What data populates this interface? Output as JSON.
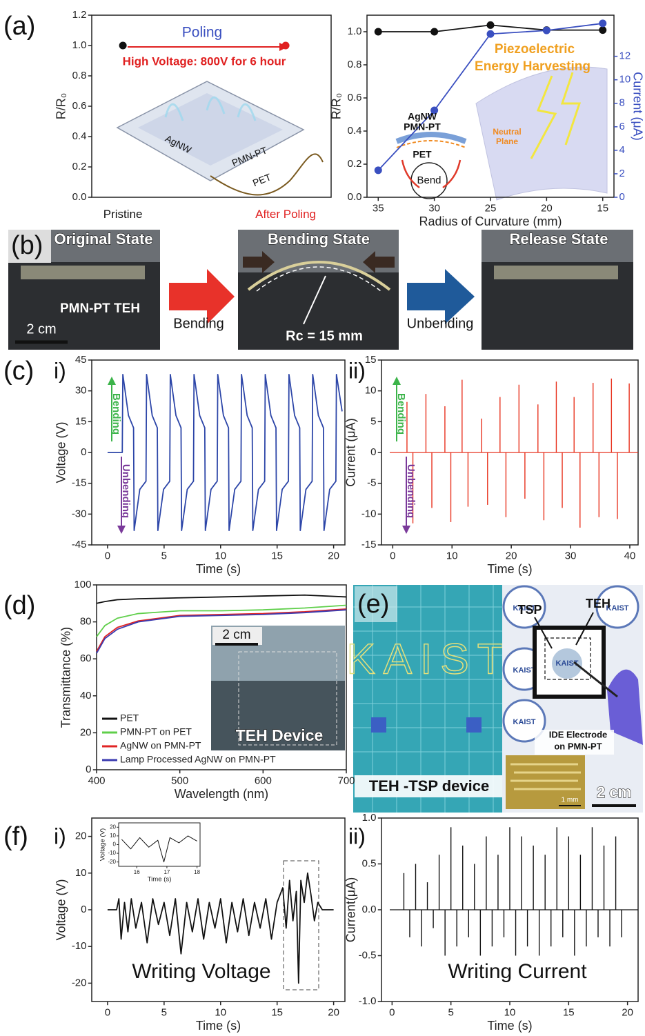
{
  "chart_data": [
    {
      "type": "dot",
      "panel_label": "(a)",
      "ylabel": "R/R₀",
      "categories": [
        "Pristine",
        "After Poling"
      ],
      "values": [
        1.0,
        1.0
      ],
      "colors": [
        "#111111",
        "#e02020"
      ],
      "ylim": [
        0,
        1.2
      ],
      "yticks": [
        {
          "value": 0,
          "label": "0.0"
        },
        {
          "value": 0.2,
          "label": "0.2"
        },
        {
          "value": 0.4,
          "label": "0.4"
        },
        {
          "value": 0.6,
          "label": "0.6"
        },
        {
          "value": 0.8,
          "label": "0.8"
        },
        {
          "value": 1.0,
          "label": "1.0"
        },
        {
          "value": 1.2,
          "label": "1.2"
        }
      ],
      "annotations": [
        "Poling",
        "High Voltage: 800V  for 6 hour",
        "AgNW",
        "PMN-PT",
        "PET"
      ]
    },
    {
      "type": "line",
      "xlabel": "Radius of Curvature (mm)",
      "ylabel": "R/R₀",
      "y2label": "Current (μA)",
      "x": [
        35,
        30,
        25,
        20,
        15
      ],
      "xlim": [
        36,
        14
      ],
      "xticks": [
        35,
        30,
        25,
        20,
        15
      ],
      "ylim": [
        0,
        1.1
      ],
      "yticks": [
        {
          "value": 0,
          "label": "0.0"
        },
        {
          "value": 0.2,
          "label": "0.2"
        },
        {
          "value": 0.4,
          "label": "0.4"
        },
        {
          "value": 0.6,
          "label": "0.6"
        },
        {
          "value": 0.8,
          "label": "0.8"
        },
        {
          "value": 1.0,
          "label": "1.0"
        }
      ],
      "y2lim": [
        0,
        15.5
      ],
      "y2ticks": [
        0,
        2,
        4,
        6,
        8,
        10,
        12
      ],
      "markers": true,
      "series": [
        {
          "color": "#111111",
          "values": [
            1.0,
            1.0,
            1.04,
            1.01,
            1.01
          ]
        },
        {
          "color": "#3a4fc0",
          "axis": "y2",
          "values": [
            2.3,
            7.4,
            13.9,
            14.2,
            14.8
          ]
        }
      ],
      "annotations": [
        "Piezoelectric",
        "Energy Harvesting",
        "AgNW",
        "PMN-PT",
        "PET",
        "Neutral",
        "Plane",
        "Bend"
      ]
    },
    {
      "type": "line",
      "panel_label": "(c)",
      "sub_label": "i)",
      "xlabel": "Time (s)",
      "ylabel": "Voltage (V)",
      "x": [
        0,
        1.3,
        1.35,
        1.85,
        2.3,
        2.35,
        2.85,
        3.4,
        3.45,
        3.95,
        4.4,
        4.45,
        4.95,
        5.5,
        5.55,
        6.05,
        6.5,
        6.55,
        7.05,
        7.6,
        7.65,
        8.15,
        8.6,
        8.65,
        9.15,
        9.7,
        9.75,
        10.25,
        10.7,
        10.75,
        11.25,
        11.8,
        11.85,
        12.35,
        12.8,
        12.85,
        13.35,
        13.9,
        13.95,
        14.45,
        14.9,
        14.95,
        15.45,
        16.0,
        16.05,
        16.55,
        17.0,
        17.05,
        17.55,
        18.1,
        18.15,
        18.65,
        19.1,
        19.15,
        19.65,
        20.2,
        20.25,
        20.75
      ],
      "xlim": [
        -1.4,
        21
      ],
      "xticks": [
        0,
        5,
        10,
        15,
        20
      ],
      "ylim": [
        -45,
        45
      ],
      "yticks": [
        -45,
        -30,
        -15,
        0,
        15,
        30,
        45
      ],
      "series": [
        {
          "color": "#2d46a8",
          "values": [
            0,
            0,
            38,
            18,
            12,
            -38,
            -18,
            -14,
            38,
            18,
            12,
            -38,
            -18,
            -14,
            38,
            18,
            12,
            -38,
            -18,
            -14,
            38,
            18,
            12,
            -38,
            -18,
            -14,
            38,
            18,
            12,
            -38,
            -18,
            -14,
            38,
            18,
            12,
            -38,
            -18,
            -14,
            38,
            18,
            12,
            -38,
            -18,
            -14,
            38,
            18,
            12,
            -38,
            -18,
            -14,
            38,
            18,
            12,
            -38,
            -18,
            -14,
            38,
            20
          ]
        }
      ],
      "annotations": [
        "Bending",
        "Unbending"
      ]
    },
    {
      "type": "stem",
      "sub_label": "ii)",
      "xlabel": "Time (s)",
      "ylabel": "Current (μA)",
      "color": "#e8321e",
      "x": [
        2.4,
        3.4,
        5.6,
        6.6,
        8.8,
        9.8,
        11.7,
        12.7,
        15.0,
        16.0,
        18.1,
        19.1,
        21.3,
        22.3,
        24.5,
        25.5,
        27.6,
        28.6,
        30.6,
        31.6,
        33.8,
        34.8,
        36.9,
        37.9,
        39.9
      ],
      "values": [
        8.2,
        -11.5,
        9.5,
        -9,
        7.5,
        -11.3,
        11.8,
        -8.8,
        5.5,
        -8.5,
        9,
        -10.5,
        11,
        -7.5,
        7.8,
        -11,
        11.5,
        -9,
        9,
        -12.2,
        11.3,
        -10.5,
        12,
        -10.8,
        11.2
      ],
      "xlim": [
        -1.9,
        41.4
      ],
      "xticks": [
        0,
        10,
        20,
        30,
        40
      ],
      "ylim": [
        -15,
        15
      ],
      "yticks": [
        -15,
        -10,
        -5,
        0,
        5,
        10,
        15
      ],
      "annotations": [
        "Bending",
        "Unbending"
      ]
    },
    {
      "type": "line",
      "panel_label": "(d)",
      "xlabel": "Wavelength (nm)",
      "ylabel": "Transmittance (%)",
      "x": [
        400,
        410,
        425,
        450,
        500,
        550,
        600,
        650,
        700
      ],
      "xlim": [
        400,
        700
      ],
      "xticks": [
        400,
        500,
        600,
        700
      ],
      "ylim": [
        0,
        100
      ],
      "yticks": [
        0,
        20,
        40,
        60,
        80,
        100
      ],
      "legend": "lower left",
      "series": [
        {
          "name": "PET",
          "color": "#111111",
          "values": [
            90,
            91,
            92,
            92.5,
            93,
            93.5,
            94,
            94.5,
            93.5
          ]
        },
        {
          "name": "PMN-PT on PET",
          "color": "#5fcf4a",
          "values": [
            72,
            78,
            82,
            84.5,
            86,
            86,
            86.5,
            87.5,
            89
          ]
        },
        {
          "name": "AgNW on PMN-PT",
          "color": "#e02424",
          "values": [
            64,
            72,
            77,
            80.5,
            83.5,
            84,
            84.5,
            85.5,
            87
          ]
        },
        {
          "name": "Lamp Processed AgNW on PMN-PT",
          "color": "#3b3bb0",
          "values": [
            63,
            71,
            76,
            80,
            83,
            83.5,
            84,
            85,
            86.5
          ]
        }
      ],
      "annotations": [
        "2 cm",
        "TEH Device"
      ]
    },
    {
      "type": "line",
      "panel_label": "(f)",
      "sub_label": "i)",
      "xlabel": "Time (s)",
      "ylabel": "Voltage (V)",
      "x": [
        0,
        0.8,
        1.0,
        1.2,
        1.5,
        1.8,
        2.1,
        2.5,
        3.0,
        3.5,
        4.0,
        4.5,
        5.0,
        5.5,
        6.0,
        6.5,
        7.0,
        7.5,
        8.0,
        8.5,
        9.0,
        9.5,
        10.0,
        10.5,
        11.0,
        11.5,
        12.0,
        12.5,
        13.0,
        13.5,
        14.0,
        14.5,
        15.0,
        15.5,
        15.8,
        16.1,
        16.4,
        16.7,
        16.9,
        17.1,
        17.4,
        17.7,
        18.0,
        18.3,
        18.6,
        19.0,
        19.5,
        20.0
      ],
      "xlim": [
        -1.4,
        21
      ],
      "xticks": [
        0,
        5,
        10,
        15,
        20
      ],
      "ylim": [
        -25,
        25
      ],
      "yticks": [
        -20,
        -10,
        0,
        10,
        20
      ],
      "series": [
        {
          "color": "#111111",
          "values": [
            0,
            0,
            3,
            -8,
            2,
            -6,
            3,
            -5,
            2,
            -9,
            3,
            -4,
            2,
            -7,
            3,
            -12,
            2,
            -6,
            3,
            -8,
            2,
            -5,
            3,
            -9,
            2,
            -6,
            3,
            -7,
            2,
            -5,
            3,
            -8,
            2,
            6,
            -5,
            8,
            -3,
            5,
            -20,
            8,
            2,
            10,
            4,
            -3,
            2,
            0,
            0,
            0
          ]
        }
      ],
      "annotations": [
        "Writing Voltage"
      ]
    },
    {
      "type": "line",
      "xlabel": "Time (s)",
      "ylabel": "Voltage (V)",
      "x": [
        15.5,
        15.8,
        16.1,
        16.4,
        16.7,
        16.9,
        17.1,
        17.4,
        17.7,
        18.0
      ],
      "xlim": [
        15.4,
        18.1
      ],
      "xticks": [
        16,
        17,
        18
      ],
      "ylim": [
        -25,
        25
      ],
      "yticks": [
        -20,
        -10,
        0,
        10,
        20
      ],
      "series": [
        {
          "color": "#111111",
          "values": [
            6,
            -5,
            8,
            -3,
            5,
            -20,
            8,
            2,
            10,
            4
          ]
        }
      ]
    },
    {
      "type": "stem",
      "sub_label": "ii)",
      "xlabel": "Time (s)",
      "ylabel": "Current(μA)",
      "color": "#111111",
      "x": [
        1.0,
        1.5,
        2.0,
        2.5,
        3.0,
        3.5,
        4.0,
        4.5,
        5.0,
        5.5,
        6.0,
        6.5,
        7.0,
        7.5,
        8.0,
        8.5,
        9.0,
        9.5,
        10.0,
        10.5,
        11.0,
        11.5,
        12.0,
        12.5,
        13.0,
        13.5,
        14.0,
        14.5,
        15.0,
        15.5,
        16.0,
        16.5,
        17.0,
        17.5,
        18.0,
        18.5,
        19.0,
        19.5
      ],
      "values": [
        0.4,
        -0.3,
        0.5,
        -0.4,
        0.3,
        -0.2,
        0.6,
        -0.5,
        0.9,
        -0.4,
        0.7,
        -0.3,
        0.5,
        -0.5,
        0.8,
        -0.4,
        0.6,
        -0.3,
        0.9,
        -0.5,
        0.8,
        -0.4,
        0.7,
        -0.5,
        0.6,
        -0.4,
        0.9,
        -0.3,
        0.8,
        -0.5,
        0.6,
        -0.4,
        0.9,
        -0.3,
        0.7,
        -0.4,
        0.8,
        -0.3
      ],
      "xlim": [
        -0.9,
        20.9
      ],
      "xticks": [
        0,
        5,
        10,
        15,
        20
      ],
      "ylim": [
        -1,
        1
      ],
      "yticks": [
        {
          "value": -1,
          "label": "-1.0"
        },
        {
          "value": -0.5,
          "label": "-0.5"
        },
        {
          "value": 0,
          "label": "0.0"
        },
        {
          "value": 0.5,
          "label": "0.5"
        },
        {
          "value": 1,
          "label": "1.0"
        }
      ],
      "annotations": [
        "Writing Current"
      ]
    }
  ],
  "photos": {
    "b": {
      "label": "(b)",
      "frames": [
        "Original State",
        "Bending State",
        "Release State"
      ],
      "device": "PMN-PT TEH",
      "scale": "2 cm",
      "radius": "Rc = 15 mm",
      "arrows": [
        "Bending",
        "Unbending"
      ]
    },
    "e": {
      "label": "(e)",
      "logo": "KAIST",
      "tsp": "TSP",
      "teh": "TEH",
      "ide": [
        "IDE Electrode",
        "on PMN-PT"
      ],
      "micro_scale": "1 mm",
      "scale": "2 cm",
      "caption": "TEH -TSP device"
    }
  }
}
